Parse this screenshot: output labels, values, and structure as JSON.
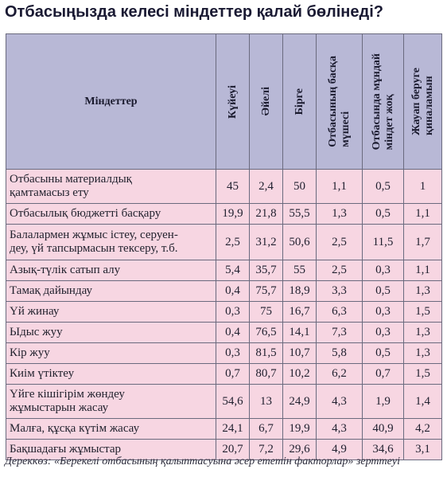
{
  "title": "Отбасыңызда келесі міндеттер қалай бөлінеді?",
  "headers": {
    "duties": "Міндеттер",
    "husband": "Күйеуі",
    "wife": "Әйелі",
    "together": "Бірге",
    "other_member": [
      "Отбасының басқа",
      "мүшесі"
    ],
    "no_need": [
      "Отбасында мұндай",
      "міндет жоқ"
    ],
    "no_answer": [
      "Жауап беруге",
      "қиналамын"
    ]
  },
  "rows": [
    {
      "duty": [
        "Отбасыны материалдық",
        "қамтамасыз ету"
      ],
      "values": [
        "45",
        "2,4",
        "50",
        "1,1",
        "0,5",
        "1"
      ]
    },
    {
      "duty": [
        "Отбасылық бюджетті басқару"
      ],
      "values": [
        "19,9",
        "21,8",
        "55,5",
        "1,3",
        "0,5",
        "1,1"
      ]
    },
    {
      "duty": [
        "Балалармен жұмыс істеу, серуен-",
        "деу, үй тапсырмасын тексеру, т.б."
      ],
      "values": [
        "2,5",
        "31,2",
        "50,6",
        "2,5",
        "11,5",
        "1,7"
      ]
    },
    {
      "duty": [
        "Азық-түлік сатып алу"
      ],
      "values": [
        "5,4",
        "35,7",
        "55",
        "2,5",
        "0,3",
        "1,1"
      ]
    },
    {
      "duty": [
        "Тамақ дайындау"
      ],
      "values": [
        "0,4",
        "75,7",
        "18,9",
        "3,3",
        "0,5",
        "1,3"
      ]
    },
    {
      "duty": [
        "Үй жинау"
      ],
      "values": [
        "0,3",
        "75",
        "16,7",
        "6,3",
        "0,3",
        "1,5"
      ]
    },
    {
      "duty": [
        "Ыдыс жуу"
      ],
      "values": [
        "0,4",
        "76,5",
        "14,1",
        "7,3",
        "0,3",
        "1,3"
      ]
    },
    {
      "duty": [
        "Кір жуу"
      ],
      "values": [
        "0,3",
        "81,5",
        "10,7",
        "5,8",
        "0,5",
        "1,3"
      ]
    },
    {
      "duty": [
        "Киім үтіктеу"
      ],
      "values": [
        "0,7",
        "80,7",
        "10,2",
        "6,2",
        "0,7",
        "1,5"
      ]
    },
    {
      "duty": [
        "Үйге кішігірім жөндеу",
        "жұмыстарын жасау"
      ],
      "values": [
        "54,6",
        "13",
        "24,9",
        "4,3",
        "1,9",
        "1,4"
      ]
    },
    {
      "duty": [
        "Малға, құсқа күтім жасау"
      ],
      "values": [
        "24,1",
        "6,7",
        "19,9",
        "4,3",
        "40,9",
        "4,2"
      ]
    },
    {
      "duty": [
        "Бақшадағы жұмыстар"
      ],
      "values": [
        "20,7",
        "7,2",
        "29,6",
        "4,9",
        "34,6",
        "3,1"
      ]
    }
  ],
  "source": "Дереккөз: «Берекелі отбасының қалыптасуына әсер ететін факторлар» зерттеуі",
  "colors": {
    "header_bg": "#b8b8d6",
    "row_bg": "#f7d6e2",
    "title": "#1a1a33"
  }
}
